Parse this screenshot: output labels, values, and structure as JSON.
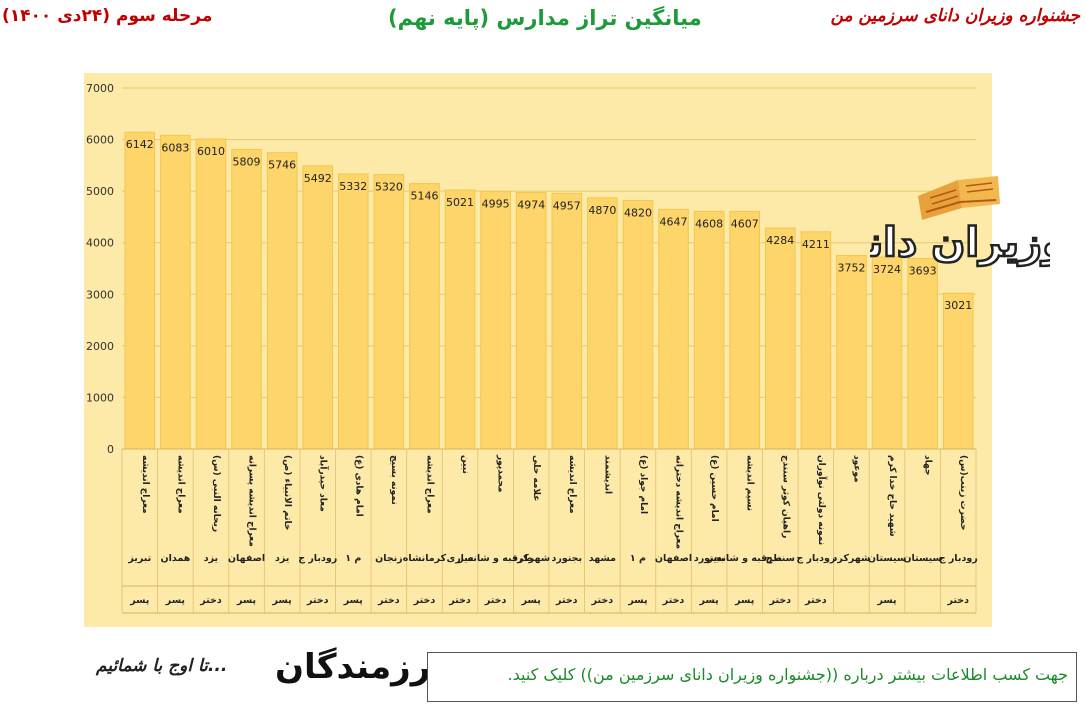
{
  "header": {
    "left": "مرحله سوم (۲۴دی ۱۴۰۰)",
    "center": "میانگین تراز مدارس (پایه نهم)",
    "right": "جشنواره وزیران دانای سرزمین من"
  },
  "logo_text": "وزیران دانا",
  "footer": {
    "brand": "رزمندگان",
    "slogan": "تا اوج با شمائیم...",
    "note": "جهت کسب اطلاعات بیشتر درباره ((جشنواره وزیران دانای سرزمین من)) کلیک کنید."
  },
  "colors": {
    "bar": "#fdd56a",
    "bar_edge": "#f6c64a",
    "plot_bg": "#fde9a8",
    "grid": "#e6c972",
    "header_red": "#c00000",
    "header_green": "#1f9a3a"
  },
  "chart_data": {
    "type": "bar",
    "ylim": [
      0,
      7000
    ],
    "yticks": [
      0,
      1000,
      2000,
      3000,
      4000,
      5000,
      6000,
      7000
    ],
    "grid": true,
    "categories": [
      {
        "school": "معراج اندیشه",
        "city": "تبریز",
        "gender": "پسر"
      },
      {
        "school": "معراج اندیشه",
        "city": "همدان",
        "gender": "پسر"
      },
      {
        "school": "ریحانه النبی (س)",
        "city": "یزد",
        "gender": "دختر"
      },
      {
        "school": "معراج اندیشه پسرانه",
        "city": "اصفهان",
        "gender": "پسر"
      },
      {
        "school": "خاتم الانبیاء (ص)",
        "city": "یزد",
        "gender": "پسر"
      },
      {
        "school": "معاد حیدرآباد",
        "city": "رودبار ج",
        "gender": "دختر"
      },
      {
        "school": "امام هادی (ع)",
        "city": "م ۱",
        "gender": "پسر"
      },
      {
        "school": "نمونه بسیج",
        "city": "زنجان",
        "gender": "دختر"
      },
      {
        "school": "معراج اندیشه",
        "city": "کرمانشاه",
        "gender": "دختر"
      },
      {
        "school": "نبین",
        "city": "ساری",
        "gender": "دختر"
      },
      {
        "school": "محمدپور",
        "city": "طرقبه و شاندیز",
        "gender": "دختر"
      },
      {
        "school": "علامه حلی",
        "city": "شهرکرد",
        "gender": "پسر"
      },
      {
        "school": "معراج اندیشه",
        "city": "بجنورد",
        "gender": "دختر"
      },
      {
        "school": "اندیشمند",
        "city": "مشهد",
        "gender": "دختر"
      },
      {
        "school": "امام جواد (ع)",
        "city": "م ۱",
        "gender": "پسر"
      },
      {
        "school": "معراج اندیشه دخترانه",
        "city": "اصفهان",
        "gender": "دختر"
      },
      {
        "school": "امام حسین (ع)",
        "city": "بجنورد",
        "gender": "پسر"
      },
      {
        "school": "نسیم اندیشه",
        "city": "طرقبه و شاندیز",
        "gender": "پسر"
      },
      {
        "school": "راهیان کوثر سنندج",
        "city": "سنندج",
        "gender": "دختر"
      },
      {
        "school": "نمونه دولتی نوآوران",
        "city": "رودبار ج",
        "gender": "دختر"
      },
      {
        "school": "موعود",
        "city": "شهرکرد",
        "gender": ""
      },
      {
        "school": "شهید حاج خدا کرم",
        "city": "سیستان",
        "gender": "پسر"
      },
      {
        "school": "جهاد",
        "city": "سیستان",
        "gender": ""
      },
      {
        "school": "حضرت زینب(س)",
        "city": "رودبار ج",
        "gender": "دختر"
      }
    ],
    "values": [
      6142,
      6083,
      6010,
      5809,
      5746,
      5492,
      5332,
      5320,
      5146,
      5021,
      4995,
      4974,
      4957,
      4870,
      4820,
      4647,
      4608,
      4607,
      4284,
      4211,
      3752,
      3724,
      3693,
      3021
    ]
  }
}
